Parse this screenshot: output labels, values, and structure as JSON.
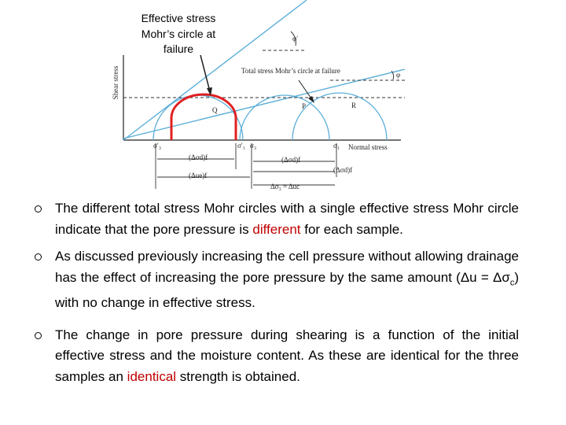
{
  "diagram": {
    "callout": [
      "Effective stress",
      "Mohr’s circle at",
      "failure"
    ],
    "y_axis_label": "Shear stress",
    "x_axis_label": "Normal stress",
    "effective_angle": "φ′",
    "total_angle": "φ",
    "total_circle_label": "Total stress Mohr’s circle at failure",
    "points": [
      "Q",
      "P",
      "R"
    ],
    "axis_marks": [
      "σ′₃",
      "σ′₁",
      "σ₃",
      "σ₁"
    ],
    "dimensions": [
      "(Δσd)f",
      "(Δσd)f",
      "(Δσd)f",
      "(Δue)f",
      "Δσ₃ = Δuc"
    ]
  },
  "bullets": [
    {
      "segments": [
        {
          "text": "The different total stress Mohr circles with a single effective stress Mohr circle indicate that the pore pressure is ",
          "style": "normal"
        },
        {
          "text": "different",
          "style": "red"
        },
        {
          "text": " for each sample.",
          "style": "normal"
        }
      ]
    },
    {
      "segments": [
        {
          "text": "As discussed previously increasing the cell pressure without allowing drainage has the effect of increasing the pore pressure by the same amount  (",
          "style": "normal"
        },
        {
          "text": "Δu = Δσ",
          "style": "normal"
        },
        {
          "text": "c",
          "style": "sub"
        },
        {
          "text": ") with no change in effective stress.",
          "style": "normal"
        }
      ]
    },
    {
      "segments": [
        {
          "text": "The change in pore pressure during shearing is a function of the initial effective stress and the moisture content. As these are identical for the three samples an ",
          "style": "normal"
        },
        {
          "text": "identical",
          "style": "red"
        },
        {
          "text": " strength is obtained.",
          "style": "normal"
        }
      ]
    }
  ]
}
